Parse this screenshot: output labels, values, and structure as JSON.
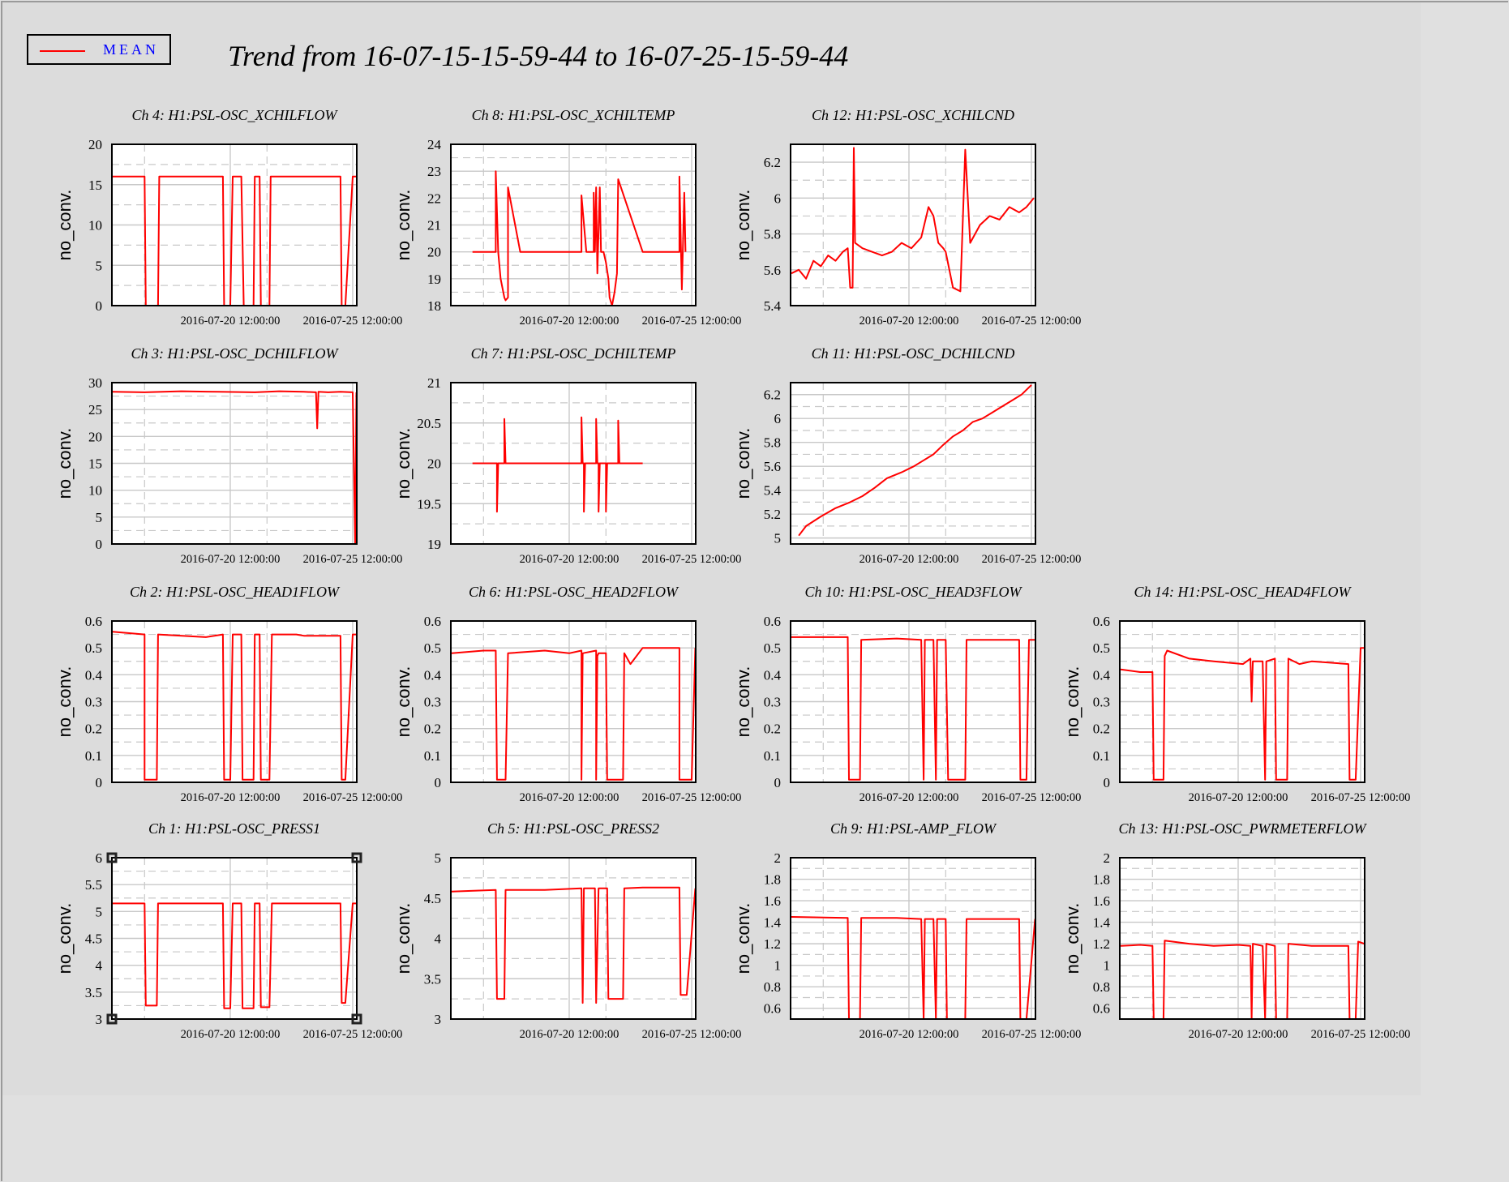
{
  "title": "Trend from 16-07-15-15-59-44 to 16-07-25-15-59-44",
  "legend": {
    "label": "MEAN",
    "color": "#ff0000"
  },
  "colors": {
    "series": "#ff0000",
    "background": "#dcdcdc",
    "grid": "#c4c4c4"
  },
  "chart_data": [
    {
      "type": "line",
      "title": "Ch 4: H1:PSL-OSC_XCHILFLOW",
      "ylabel": "no_conv.",
      "ylim": [
        0,
        20
      ],
      "yticks": [
        "0",
        "5",
        "10",
        "15",
        "20"
      ],
      "xticks": [
        "2016-07-20 12:00:00",
        "2016-07-25 12:00:00"
      ],
      "series": [
        {
          "x": [
            15.7,
            17.0,
            17.05,
            17.55,
            17.6,
            17.7,
            20.2,
            20.25,
            20.5,
            20.6,
            20.95,
            21.05,
            21.45,
            21.5,
            21.7,
            21.75,
            22.1,
            22.15,
            22.95,
            23.2,
            25.0,
            25.05,
            25.2,
            25.5,
            25.65
          ],
          "y": [
            16,
            16,
            0,
            0,
            16,
            16,
            16,
            0,
            0,
            16,
            16,
            0,
            0,
            16,
            16,
            0,
            0,
            16,
            16,
            16,
            16,
            0,
            0,
            16,
            16
          ]
        }
      ]
    },
    {
      "type": "line",
      "title": "Ch 8: H1:PSL-OSC_XCHILTEMP",
      "ylabel": "no_conv.",
      "ylim": [
        18,
        24
      ],
      "yticks": [
        "18",
        "19",
        "20",
        "21",
        "22",
        "23",
        "24"
      ],
      "xticks": [
        "2016-07-20 12:00:00",
        "2016-07-25 12:00:00"
      ],
      "series": [
        {
          "x": [
            16.55,
            17.5,
            17.5,
            17.55,
            17.6,
            17.7,
            17.85,
            17.9,
            18.0,
            18.0,
            18.5,
            19.0,
            19.5,
            20.0,
            20.5,
            21.0,
            21.0,
            21.2,
            21.5,
            21.5,
            21.55,
            21.6,
            21.65,
            21.75,
            21.8,
            21.9,
            22.0,
            22.1,
            22.15,
            22.25,
            22.35,
            22.45,
            22.5,
            23.5,
            25.0,
            25.0,
            25.1,
            25.2,
            25.25
          ],
          "y": [
            20,
            20,
            23.0,
            21.5,
            20.0,
            19.0,
            18.3,
            18.2,
            18.3,
            22.4,
            20,
            20,
            20,
            20,
            20,
            20,
            22.1,
            20,
            20,
            22.2,
            20,
            22.4,
            19.2,
            22.4,
            20,
            20,
            19.6,
            19.0,
            18.3,
            18.0,
            18.5,
            19.2,
            22.7,
            20,
            20,
            22.8,
            18.6,
            22.2,
            20
          ]
        }
      ]
    },
    {
      "type": "line",
      "title": "Ch 12: H1:PSL-OSC_XCHILCND",
      "ylabel": "no_conv.",
      "ylim": [
        5.4,
        6.3
      ],
      "yticks": [
        "5.4",
        "5.6",
        "5.8",
        "6",
        "6.2"
      ],
      "xticks": [
        "2016-07-20 12:00:00",
        "2016-07-25 12:00:00"
      ],
      "series": [
        {
          "x": [
            15.7,
            16.0,
            16.3,
            16.6,
            16.9,
            17.2,
            17.5,
            17.8,
            18.0,
            18.1,
            18.2,
            18.25,
            18.3,
            18.6,
            19.0,
            19.4,
            19.8,
            20.2,
            20.6,
            21.0,
            21.3,
            21.5,
            21.7,
            21.9,
            22.0,
            22.3,
            22.6,
            22.8,
            23.0,
            23.4,
            23.8,
            24.2,
            24.6,
            25.0,
            25.3,
            25.6
          ],
          "y": [
            5.58,
            5.6,
            5.55,
            5.65,
            5.62,
            5.68,
            5.65,
            5.7,
            5.72,
            5.5,
            5.5,
            6.28,
            5.75,
            5.72,
            5.7,
            5.68,
            5.7,
            5.75,
            5.72,
            5.78,
            5.95,
            5.9,
            5.75,
            5.72,
            5.7,
            5.5,
            5.48,
            6.27,
            5.75,
            5.85,
            5.9,
            5.88,
            5.95,
            5.92,
            5.95,
            6.0
          ]
        }
      ]
    },
    {
      "type": "line",
      "title": "Ch 3: H1:PSL-OSC_DCHILFLOW",
      "ylabel": "no_conv.",
      "ylim": [
        0,
        30
      ],
      "yticks": [
        "0",
        "5",
        "10",
        "15",
        "20",
        "25",
        "30"
      ],
      "xticks": [
        "2016-07-20 12:00:00",
        "2016-07-25 12:00:00"
      ],
      "series": [
        {
          "x": [
            15.7,
            17.0,
            18.5,
            20.0,
            21.5,
            22.5,
            23.5,
            24.0,
            24.05,
            24.1,
            24.5,
            25.0,
            25.5,
            25.6,
            25.65
          ],
          "y": [
            28.3,
            28.2,
            28.4,
            28.3,
            28.2,
            28.4,
            28.3,
            28.2,
            21.5,
            28.3,
            28.2,
            28.3,
            28.2,
            0,
            28.2
          ]
        }
      ]
    },
    {
      "type": "line",
      "title": "Ch 7: H1:PSL-OSC_DCHILTEMP",
      "ylabel": "no_conv.",
      "ylim": [
        19,
        21
      ],
      "yticks": [
        "19",
        "19.5",
        "20",
        "20.5",
        "21"
      ],
      "xticks": [
        "2016-07-20 12:00:00",
        "2016-07-25 12:00:00"
      ],
      "series": [
        {
          "x": [
            16.55,
            17.55,
            17.55,
            17.6,
            17.85,
            17.85,
            17.9,
            21.0,
            21.0,
            21.05,
            21.1,
            21.1,
            21.15,
            21.6,
            21.6,
            21.65,
            21.7,
            21.7,
            21.75,
            22.0,
            22.0,
            22.05,
            22.5,
            22.5,
            22.55,
            23.5
          ],
          "y": [
            20,
            20,
            19.4,
            20,
            20,
            20.55,
            20,
            20,
            20.57,
            20,
            20,
            19.4,
            20,
            20,
            20.55,
            20,
            20,
            19.4,
            20,
            20,
            19.4,
            20,
            20,
            20.53,
            20,
            20
          ]
        }
      ]
    },
    {
      "type": "line",
      "title": "Ch 11: H1:PSL-OSC_DCHILCND",
      "ylabel": "no_conv.",
      "ylim": [
        4.95,
        6.3
      ],
      "yticks": [
        "5",
        "5.2",
        "5.4",
        "5.6",
        "5.8",
        "6",
        "6.2"
      ],
      "xticks": [
        "2016-07-20 12:00:00",
        "2016-07-25 12:00:00"
      ],
      "series": [
        {
          "x": [
            16.0,
            16.3,
            16.9,
            17.5,
            18.1,
            18.6,
            19.1,
            19.6,
            20.2,
            20.7,
            21.1,
            21.5,
            21.9,
            22.3,
            22.7,
            23.1,
            23.5,
            23.9,
            24.3,
            24.7,
            25.1,
            25.5
          ],
          "y": [
            5.02,
            5.1,
            5.18,
            5.25,
            5.3,
            5.35,
            5.42,
            5.5,
            5.55,
            5.6,
            5.65,
            5.7,
            5.78,
            5.85,
            5.9,
            5.97,
            6.0,
            6.05,
            6.1,
            6.15,
            6.2,
            6.28
          ]
        }
      ]
    },
    {
      "type": "line",
      "title": "Ch 2: H1:PSL-OSC_HEAD1FLOW",
      "ylabel": "no_conv.",
      "ylim": [
        0,
        0.6
      ],
      "yticks": [
        "0",
        "0.1",
        "0.2",
        "0.3",
        "0.4",
        "0.5",
        "0.6"
      ],
      "xticks": [
        "2016-07-20 12:00:00",
        "2016-07-25 12:00:00"
      ],
      "series": [
        {
          "x": [
            15.7,
            17.0,
            17.0,
            17.5,
            17.55,
            19.5,
            20.2,
            20.25,
            20.5,
            20.6,
            20.95,
            21.0,
            21.45,
            21.5,
            21.7,
            21.75,
            22.1,
            22.2,
            23.2,
            23.5,
            25.0,
            25.05,
            25.2,
            25.5,
            25.65
          ],
          "y": [
            0.56,
            0.55,
            0.01,
            0.01,
            0.55,
            0.54,
            0.55,
            0.01,
            0.01,
            0.55,
            0.55,
            0.01,
            0.01,
            0.55,
            0.55,
            0.01,
            0.01,
            0.55,
            0.55,
            0.545,
            0.545,
            0.01,
            0.01,
            0.55,
            0.55
          ]
        }
      ]
    },
    {
      "type": "line",
      "title": "Ch 6: H1:PSL-OSC_HEAD2FLOW",
      "ylabel": "no_conv.",
      "ylim": [
        0,
        0.6
      ],
      "yticks": [
        "0",
        "0.1",
        "0.2",
        "0.3",
        "0.4",
        "0.5",
        "0.6"
      ],
      "xticks": [
        "2016-07-20 12:00:00",
        "2016-07-25 12:00:00"
      ],
      "series": [
        {
          "x": [
            15.7,
            17.0,
            17.5,
            17.55,
            17.9,
            18.0,
            19.5,
            20.5,
            21.0,
            21.0,
            21.05,
            21.6,
            21.6,
            21.65,
            21.7,
            22.0,
            22.05,
            22.7,
            22.75,
            23.0,
            23.5,
            25.0,
            25.0,
            25.5,
            25.65
          ],
          "y": [
            0.48,
            0.49,
            0.49,
            0.01,
            0.01,
            0.48,
            0.49,
            0.48,
            0.49,
            0.01,
            0.48,
            0.49,
            0.01,
            0.47,
            0.48,
            0.48,
            0.01,
            0.01,
            0.48,
            0.44,
            0.5,
            0.5,
            0.01,
            0.01,
            0.5
          ]
        }
      ]
    },
    {
      "type": "line",
      "title": "Ch 10: H1:PSL-OSC_HEAD3FLOW",
      "ylabel": "no_conv.",
      "ylim": [
        0,
        0.6
      ],
      "yticks": [
        "0",
        "0.1",
        "0.2",
        "0.3",
        "0.4",
        "0.5",
        "0.6"
      ],
      "xticks": [
        "2016-07-20 12:00:00",
        "2016-07-25 12:00:00"
      ],
      "series": [
        {
          "x": [
            15.7,
            18.0,
            18.05,
            18.5,
            18.55,
            20.0,
            21.0,
            21.1,
            21.15,
            21.5,
            21.6,
            21.65,
            22.0,
            22.1,
            22.15,
            22.8,
            22.85,
            23.5,
            25.0,
            25.05,
            25.3,
            25.4,
            25.65
          ],
          "y": [
            0.54,
            0.54,
            0.01,
            0.01,
            0.53,
            0.535,
            0.53,
            0.01,
            0.53,
            0.53,
            0.01,
            0.53,
            0.53,
            0.01,
            0.01,
            0.01,
            0.53,
            0.53,
            0.53,
            0.01,
            0.01,
            0.53,
            0.53
          ]
        }
      ]
    },
    {
      "type": "line",
      "title": "Ch 14: H1:PSL-OSC_HEAD4FLOW",
      "ylabel": "no_conv.",
      "ylim": [
        0,
        0.6
      ],
      "yticks": [
        "0",
        "0.1",
        "0.2",
        "0.3",
        "0.4",
        "0.5",
        "0.6"
      ],
      "xticks": [
        "2016-07-20 12:00:00",
        "2016-07-25 12:00:00"
      ],
      "series": [
        {
          "x": [
            15.7,
            16.5,
            17.0,
            17.05,
            17.45,
            17.5,
            17.6,
            18.5,
            19.5,
            20.7,
            21.0,
            21.05,
            21.1,
            21.5,
            21.6,
            21.65,
            22.0,
            22.05,
            22.5,
            22.55,
            23.0,
            23.5,
            25.0,
            25.05,
            25.3,
            25.5,
            25.65
          ],
          "y": [
            0.42,
            0.41,
            0.41,
            0.01,
            0.01,
            0.47,
            0.49,
            0.46,
            0.45,
            0.44,
            0.46,
            0.3,
            0.45,
            0.45,
            0.01,
            0.45,
            0.46,
            0.01,
            0.01,
            0.46,
            0.44,
            0.45,
            0.44,
            0.01,
            0.01,
            0.5,
            0.5
          ]
        }
      ]
    },
    {
      "type": "line",
      "title": "Ch 1: H1:PSL-OSC_PRESS1",
      "ylabel": "no_conv.",
      "ylim": [
        3,
        6
      ],
      "yticks": [
        "3",
        "3.5",
        "4",
        "4.5",
        "5",
        "5.5",
        "6"
      ],
      "xticks": [
        "2016-07-20 12:00:00",
        "2016-07-25 12:00:00"
      ],
      "series": [
        {
          "x": [
            15.7,
            17.0,
            17.05,
            17.5,
            17.55,
            19.5,
            20.2,
            20.25,
            20.5,
            20.6,
            20.95,
            21.0,
            21.45,
            21.5,
            21.7,
            21.75,
            22.1,
            22.2,
            23.2,
            23.5,
            25.0,
            25.05,
            25.2,
            25.5,
            25.65
          ],
          "y": [
            5.15,
            5.15,
            3.25,
            3.25,
            5.15,
            5.15,
            5.15,
            3.2,
            3.2,
            5.15,
            5.15,
            3.2,
            3.2,
            5.15,
            5.15,
            3.22,
            3.22,
            5.15,
            5.15,
            5.15,
            5.15,
            3.3,
            3.3,
            5.15,
            5.15
          ]
        }
      ]
    },
    {
      "type": "line",
      "title": "Ch 5: H1:PSL-OSC_PRESS2",
      "ylabel": "no_conv.",
      "ylim": [
        3,
        5
      ],
      "yticks": [
        "3",
        "3.5",
        "4",
        "4.5",
        "5"
      ],
      "xticks": [
        "2016-07-20 12:00:00",
        "2016-07-25 12:00:00"
      ],
      "series": [
        {
          "x": [
            15.7,
            17.5,
            17.55,
            17.85,
            17.9,
            19.5,
            21.0,
            21.05,
            21.1,
            21.55,
            21.6,
            21.7,
            22.05,
            22.1,
            22.7,
            22.75,
            23.5,
            25.0,
            25.05,
            25.3,
            25.65
          ],
          "y": [
            4.58,
            4.6,
            3.25,
            3.25,
            4.6,
            4.6,
            4.62,
            3.2,
            4.62,
            4.62,
            3.2,
            4.62,
            4.62,
            3.25,
            3.25,
            4.62,
            4.63,
            4.63,
            3.3,
            3.3,
            4.62
          ]
        }
      ]
    },
    {
      "type": "line",
      "title": "Ch 9: H1:PSL-AMP_FLOW",
      "ylabel": "no_conv.",
      "ylim": [
        0.5,
        2
      ],
      "yticks": [
        "0.6",
        "0.8",
        "1",
        "1.2",
        "1.4",
        "1.6",
        "1.8",
        "2"
      ],
      "xticks": [
        "2016-07-20 12:00:00",
        "2016-07-25 12:00:00"
      ],
      "series": [
        {
          "x": [
            15.7,
            18.0,
            18.05,
            18.5,
            18.55,
            20.0,
            21.0,
            21.1,
            21.15,
            21.5,
            21.6,
            21.65,
            22.0,
            22.05,
            22.8,
            22.85,
            23.5,
            25.0,
            25.05,
            25.3,
            25.65
          ],
          "y": [
            1.45,
            1.44,
            0.5,
            0.5,
            1.44,
            1.44,
            1.43,
            0.5,
            1.43,
            1.43,
            0.5,
            1.43,
            1.43,
            0.5,
            0.5,
            1.43,
            1.43,
            1.43,
            0.5,
            0.5,
            1.43
          ]
        }
      ]
    },
    {
      "type": "line",
      "title": "Ch 13: H1:PSL-OSC_PWRMETERFLOW",
      "ylabel": "no_conv.",
      "ylim": [
        0.5,
        2
      ],
      "yticks": [
        "0.6",
        "0.8",
        "1",
        "1.2",
        "1.4",
        "1.6",
        "1.8",
        "2"
      ],
      "xticks": [
        "2016-07-20 12:00:00",
        "2016-07-25 12:00:00"
      ],
      "series": [
        {
          "x": [
            15.7,
            16.5,
            17.0,
            17.05,
            17.45,
            17.5,
            18.5,
            19.5,
            20.5,
            21.0,
            21.05,
            21.1,
            21.5,
            21.6,
            21.65,
            22.0,
            22.05,
            22.5,
            22.55,
            23.5,
            25.0,
            25.05,
            25.3,
            25.4,
            25.65
          ],
          "y": [
            1.18,
            1.19,
            1.18,
            0.5,
            0.5,
            1.23,
            1.2,
            1.18,
            1.19,
            1.18,
            0.5,
            1.2,
            1.18,
            0.5,
            1.2,
            1.18,
            0.5,
            0.5,
            1.2,
            1.18,
            1.18,
            0.5,
            0.5,
            1.22,
            1.2
          ]
        }
      ]
    }
  ]
}
